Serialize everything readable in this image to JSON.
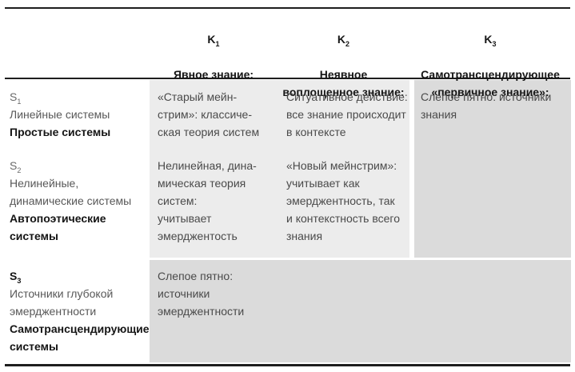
{
  "table": {
    "columns": [
      {
        "key": "K",
        "sub": "1",
        "title": "Явное знание:"
      },
      {
        "key": "K",
        "sub": "2",
        "title": "Неявное\nвоплощенное знание:"
      },
      {
        "key": "K",
        "sub": "3",
        "title": "Самотрансцендирующее\n«первичное знание»:"
      }
    ],
    "rows": [
      {
        "key": "S",
        "sub": "1",
        "desc": "Линейные системы",
        "bold": "Простые системы"
      },
      {
        "key": "S",
        "sub": "2",
        "desc": "Нелинейные,\nдинамические системы",
        "bold": "Автопоэтические\nсистемы"
      },
      {
        "key": "S",
        "sub": "3",
        "desc": "Источники глубокой\nэмерджентности",
        "bold": "Самотрансцендирующие\nсистемы"
      }
    ],
    "cells": {
      "s1k1": "«Старый мейн-\nстрим»: классиче-\nская теория систем",
      "s2k1": "Нелинейная, дина-\nмическая теория\nсистем:\nучитывает\nэмерджентость",
      "s3k1": "Слепое пятно:\nисточники\nэмерджентности",
      "s1k2": "Ситуативное действие:\nвсе знание происходит\nв контексте",
      "s2k2": "«Новый мейнстрим»:\nучитывает как\nэмерджентность, так\nи контекстность всего\nзнания",
      "s1k3": "Слепое пятно: источники\nзнания"
    },
    "colors": {
      "light_cell": "#ececec",
      "dark_cell": "#dbdbdb",
      "rule": "#1e1e1e",
      "body_text": "#4a4a4a",
      "heading_text": "#161616"
    }
  }
}
